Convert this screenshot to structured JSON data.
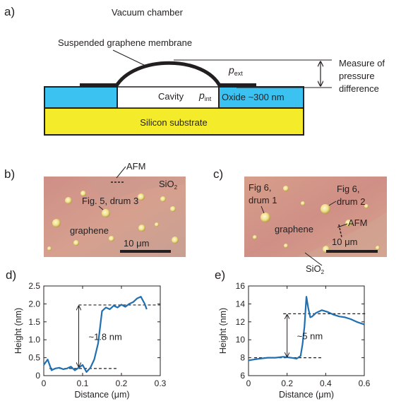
{
  "colors": {
    "silicon": "#f4ec2b",
    "oxide": "#3cc2f0",
    "cavity": "#ffffff",
    "outline": "#231f20",
    "micrograph_b": "#d39a8c",
    "micrograph_c": "#d8a08c",
    "curve": "#1f6fb2"
  },
  "panel_a": {
    "letter": "a)",
    "vacuum_label": "Vacuum chamber",
    "membrane_label": "Suspended graphene membrane",
    "p_ext": {
      "sym": "p",
      "sub": "ext"
    },
    "p_int": {
      "sym": "p",
      "sub": "int"
    },
    "cavity_label": "Cavity",
    "oxide_label": "Oxide ~300 nm",
    "silicon_label": "Silicon substrate",
    "measure_lines": [
      "Measure of",
      "pressure",
      "difference"
    ]
  },
  "panel_b": {
    "letter": "b)",
    "afm_label": "AFM",
    "sio2": {
      "base": "SiO",
      "sub": "2"
    },
    "drum_label": "Fig. 5, drum 3",
    "graphene_label": "graphene",
    "scalebar": {
      "num": "10 ",
      "unit": "μm"
    }
  },
  "panel_c": {
    "letter": "c)",
    "drum1_lines": [
      "Fig 6,",
      "drum 1"
    ],
    "drum2_lines": [
      "Fig 6,",
      "drum 2"
    ],
    "afm_label": "AFM",
    "graphene_label": "graphene",
    "scalebar": {
      "num": "10 ",
      "unit": "μm"
    },
    "sio2": {
      "base": "SiO",
      "sub": "2"
    }
  },
  "chart_data": [
    {
      "panel": "d)",
      "type": "line",
      "xlabel": "Distance (μm)",
      "ylabel": "Height (nm)",
      "xlim": [
        0,
        0.3
      ],
      "ylim": [
        0,
        2.5
      ],
      "xticks": [
        "0",
        "0.1",
        "0.2",
        "0.3"
      ],
      "xtick_values": [
        0,
        0.1,
        0.2,
        0.3
      ],
      "yticks": [
        "0",
        "0.5",
        "1.0",
        "1.5",
        "2.0",
        "2.5"
      ],
      "ytick_values": [
        0,
        0.5,
        1.0,
        1.5,
        2.0,
        2.5
      ],
      "annotation": "~1.8 nm",
      "reference_levels": [
        0.2,
        1.97
      ],
      "arrow": {
        "x": 0.09,
        "from": 0.22,
        "to": 1.97
      },
      "x": [
        0,
        0.01,
        0.02,
        0.03,
        0.04,
        0.05,
        0.06,
        0.07,
        0.08,
        0.09,
        0.1,
        0.11,
        0.12,
        0.13,
        0.14,
        0.15,
        0.16,
        0.17,
        0.18,
        0.19,
        0.2,
        0.21,
        0.22,
        0.23,
        0.24,
        0.25,
        0.26,
        0.265
      ],
      "y": [
        0.3,
        0.45,
        0.15,
        0.2,
        0.22,
        0.18,
        0.2,
        0.25,
        0.15,
        0.22,
        0.3,
        0.1,
        0.22,
        0.45,
        0.9,
        1.8,
        1.9,
        1.85,
        1.95,
        1.9,
        1.98,
        1.92,
        2.0,
        2.05,
        2.15,
        2.2,
        2.0,
        1.85
      ]
    },
    {
      "panel": "e)",
      "type": "line",
      "xlabel": "Distance (μm)",
      "ylabel": "Height (nm)",
      "xlim": [
        0,
        0.6
      ],
      "ylim": [
        6,
        16
      ],
      "xticks": [
        "0",
        "0.2",
        "0.4",
        "0.6"
      ],
      "xtick_values": [
        0,
        0.2,
        0.4,
        0.6
      ],
      "yticks": [
        "6",
        "8",
        "10",
        "12",
        "14",
        "16"
      ],
      "ytick_values": [
        6,
        8,
        10,
        12,
        14,
        16
      ],
      "annotation": "~5 nm",
      "reference_levels": [
        8.0,
        12.9
      ],
      "arrow": {
        "x": 0.2,
        "from": 8.0,
        "to": 12.9
      },
      "x": [
        0,
        0.03,
        0.06,
        0.1,
        0.14,
        0.18,
        0.22,
        0.25,
        0.27,
        0.28,
        0.29,
        0.3,
        0.31,
        0.32,
        0.33,
        0.35,
        0.38,
        0.41,
        0.44,
        0.47,
        0.5,
        0.53,
        0.56,
        0.6
      ],
      "y": [
        7.7,
        7.8,
        7.9,
        8.0,
        8.0,
        8.1,
        8.0,
        7.9,
        8.2,
        9.5,
        11.5,
        14.8,
        13.5,
        12.5,
        12.6,
        13.0,
        13.3,
        13.1,
        12.8,
        12.6,
        12.5,
        12.3,
        12.0,
        11.7
      ]
    }
  ]
}
